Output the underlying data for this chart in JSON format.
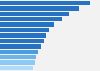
{
  "values": [
    17.5,
    15.5,
    13.5,
    12.0,
    10.5,
    9.5,
    9.0,
    8.5,
    8.0,
    7.5,
    7.0,
    6.8,
    6.5
  ],
  "bar_colors": [
    "#2772c3",
    "#2772c3",
    "#2772c3",
    "#2772c3",
    "#2772c3",
    "#2772c3",
    "#2772c3",
    "#2772c3",
    "#2772c3",
    "#4a9de0",
    "#6db4ed",
    "#8ec8f4",
    "#b0dafa"
  ],
  "background_color": "#f2f2f2",
  "xlim": [
    0,
    19.5
  ]
}
